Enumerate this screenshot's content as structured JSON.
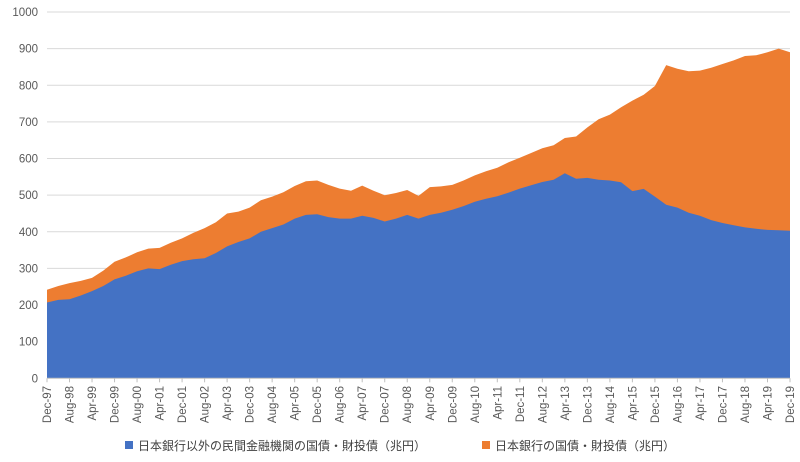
{
  "chart_data": {
    "type": "area",
    "stacked": true,
    "title": "",
    "xlabel": "",
    "ylabel": "",
    "ylim": [
      0,
      1000
    ],
    "y_ticks": [
      0,
      100,
      200,
      300,
      400,
      500,
      600,
      700,
      800,
      900,
      1000
    ],
    "grid": true,
    "legend_position": "bottom",
    "x_label_every": 2,
    "categories": [
      "Dec-97",
      "Apr-98",
      "Aug-98",
      "Dec-98",
      "Apr-99",
      "Aug-99",
      "Dec-99",
      "Apr-00",
      "Aug-00",
      "Dec-00",
      "Apr-01",
      "Aug-01",
      "Dec-01",
      "Apr-02",
      "Aug-02",
      "Dec-02",
      "Apr-03",
      "Aug-03",
      "Dec-03",
      "Apr-04",
      "Aug-04",
      "Dec-04",
      "Apr-05",
      "Aug-05",
      "Dec-05",
      "Apr-06",
      "Aug-06",
      "Dec-06",
      "Apr-07",
      "Aug-07",
      "Dec-07",
      "Apr-08",
      "Aug-08",
      "Dec-08",
      "Apr-09",
      "Aug-09",
      "Dec-09",
      "Apr-10",
      "Aug-10",
      "Dec-10",
      "Apr-11",
      "Aug-11",
      "Dec-11",
      "Apr-12",
      "Aug-12",
      "Dec-12",
      "Apr-13",
      "Aug-13",
      "Dec-13",
      "Apr-14",
      "Aug-14",
      "Dec-14",
      "Apr-15",
      "Aug-15",
      "Dec-15",
      "Apr-16",
      "Aug-16",
      "Dec-16",
      "Apr-17",
      "Aug-17",
      "Dec-17",
      "Apr-18",
      "Aug-18",
      "Dec-18",
      "Apr-19",
      "Aug-19",
      "Dec-19"
    ],
    "series": [
      {
        "name": "日本銀行以外の民間金融機関の国債・財投債（兆円）",
        "color": "#4472C4",
        "values": [
          207,
          214,
          216,
          226,
          238,
          252,
          270,
          280,
          292,
          300,
          298,
          310,
          320,
          325,
          328,
          342,
          360,
          372,
          382,
          400,
          410,
          420,
          436,
          446,
          448,
          440,
          436,
          436,
          444,
          438,
          428,
          436,
          446,
          436,
          446,
          452,
          460,
          470,
          482,
          490,
          497,
          507,
          518,
          527,
          536,
          542,
          560,
          545,
          547,
          542,
          540,
          535,
          511,
          517,
          496,
          474,
          466,
          452,
          444,
          432,
          424,
          418,
          412,
          408,
          405,
          404,
          403
        ]
      },
      {
        "name": "日本銀行の国債・財投債（兆円）",
        "color": "#ED7D31",
        "values": [
          35,
          38,
          44,
          40,
          36,
          42,
          48,
          50,
          52,
          54,
          58,
          60,
          62,
          72,
          82,
          84,
          90,
          83,
          84,
          86,
          86,
          88,
          89,
          92,
          92,
          88,
          82,
          76,
          82,
          74,
          72,
          70,
          68,
          62,
          76,
          72,
          68,
          70,
          72,
          75,
          78,
          83,
          84,
          88,
          92,
          94,
          96,
          115,
          138,
          165,
          180,
          205,
          247,
          257,
          302,
          381,
          379,
          386,
          396,
          416,
          434,
          450,
          468,
          474,
          485,
          496,
          487
        ]
      }
    ]
  },
  "legend": {
    "series1_label": "日本銀行以外の民間金融機関の国債・財投債（兆円）",
    "series2_label": "日本銀行の国債・財投債（兆円）"
  },
  "style": {
    "series1_color": "#4472C4",
    "series2_color": "#ED7D31",
    "gridline_color": "#D9D9D9",
    "axis_line_color": "#BFBFBF",
    "axis_text_color": "#595959",
    "background_color": "#FFFFFF"
  }
}
